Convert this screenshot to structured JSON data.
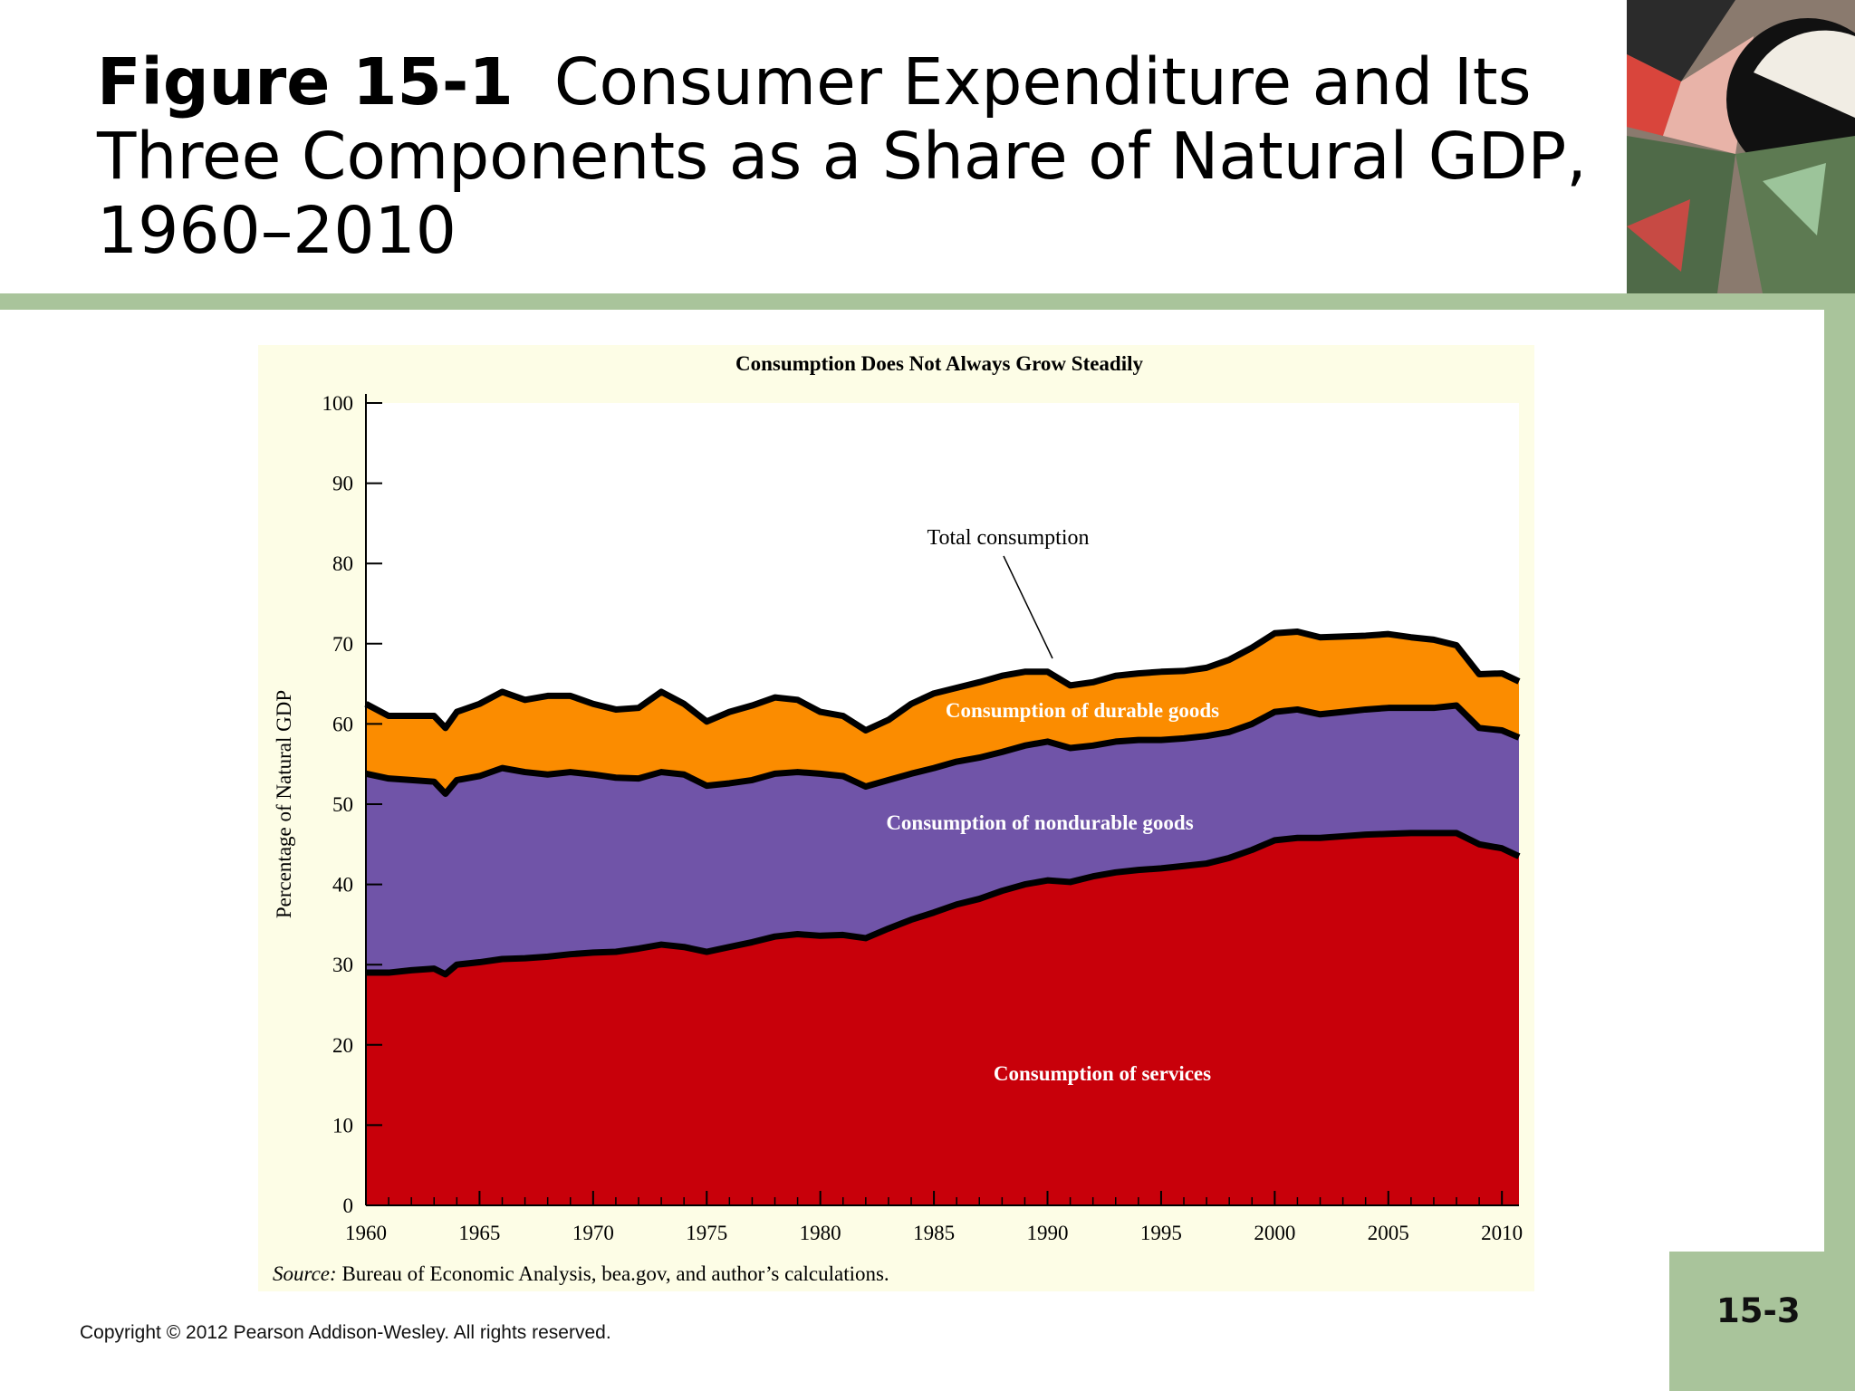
{
  "slide": {
    "figure_label": "Figure 15-1",
    "title_rest": "Consumer Expenditure and Its Three Components as a Share of Natural GDP, 1960–2010",
    "page_number": "15-3",
    "copyright": "Copyright © 2012 Pearson Addison-Wesley. All rights reserved.",
    "accent_color": "#a9c49b"
  },
  "chart_data": {
    "type": "area",
    "stacked": true,
    "title": "Consumption Does Not Always Grow Steadily",
    "xlabel": "",
    "ylabel": "Percentage of Natural GDP",
    "xlim": [
      1960,
      2010.75
    ],
    "ylim": [
      0,
      100
    ],
    "xticks": [
      1960,
      1965,
      1970,
      1975,
      1980,
      1985,
      1990,
      1995,
      2000,
      2005,
      2010
    ],
    "yticks": [
      0,
      10,
      20,
      30,
      40,
      50,
      60,
      70,
      80,
      90,
      100
    ],
    "grid": false,
    "source_prefix": "Source:",
    "source_text": "Bureau of Economic Analysis, bea.gov, and author’s calculations.",
    "annotation": "Total consumption",
    "x": [
      1960,
      1961,
      1962,
      1963,
      1963.5,
      1964,
      1965,
      1966,
      1967,
      1968,
      1969,
      1970,
      1971,
      1972,
      1973,
      1974,
      1975,
      1976,
      1977,
      1978,
      1979,
      1980,
      1981,
      1982,
      1983,
      1984,
      1985,
      1986,
      1987,
      1988,
      1989,
      1990,
      1991,
      1992,
      1993,
      1994,
      1995,
      1996,
      1997,
      1998,
      1999,
      2000,
      2001,
      2002,
      2003,
      2004,
      2005,
      2006,
      2007,
      2008,
      2009,
      2010,
      2010.75
    ],
    "series": [
      {
        "name": "Consumption of services",
        "color": "#c8000a",
        "values": [
          29,
          29,
          29.3,
          29.5,
          28.8,
          30,
          30.3,
          30.7,
          30.8,
          31,
          31.3,
          31.5,
          31.6,
          32,
          32.5,
          32.2,
          31.6,
          32.2,
          32.8,
          33.5,
          33.8,
          33.6,
          33.7,
          33.3,
          34.5,
          35.6,
          36.5,
          37.5,
          38.2,
          39.2,
          40,
          40.5,
          40.3,
          41,
          41.5,
          41.8,
          42,
          42.3,
          42.6,
          43.3,
          44.3,
          45.5,
          45.8,
          45.8,
          46,
          46.2,
          46.3,
          46.4,
          46.4,
          46.4,
          45,
          44.5,
          43.5
        ]
      },
      {
        "name": "Consumption of nondurable goods",
        "color": "#7054a8",
        "values": [
          24.8,
          24.2,
          23.7,
          23.3,
          22.5,
          23.0,
          23.2,
          23.8,
          23.2,
          22.7,
          22.7,
          22.2,
          21.7,
          21.2,
          21.5,
          21.5,
          20.7,
          20.4,
          20.2,
          20.3,
          20.2,
          20.2,
          19.8,
          18.9,
          18.5,
          18.2,
          18.0,
          17.8,
          17.6,
          17.3,
          17.3,
          17.3,
          16.7,
          16.3,
          16.3,
          16.2,
          16.0,
          15.9,
          15.9,
          15.7,
          15.7,
          16.0,
          16.0,
          15.4,
          15.5,
          15.6,
          15.7,
          15.6,
          15.6,
          15.9,
          14.5,
          14.7,
          14.8
        ]
      },
      {
        "name": "Consumption of durable goods",
        "color": "#fb8c00",
        "values": [
          8.7,
          7.8,
          8.0,
          8.2,
          8.2,
          8.5,
          9.0,
          9.5,
          9.0,
          9.8,
          9.5,
          8.8,
          8.5,
          8.8,
          10.0,
          8.8,
          8.0,
          8.9,
          9.3,
          9.5,
          9.0,
          7.7,
          7.5,
          7.0,
          7.5,
          8.7,
          9.3,
          9.2,
          9.4,
          9.5,
          9.2,
          8.7,
          7.8,
          7.9,
          8.2,
          8.3,
          8.5,
          8.4,
          8.5,
          9.0,
          9.5,
          9.8,
          9.7,
          9.6,
          9.4,
          9.2,
          9.2,
          8.8,
          8.5,
          7.5,
          6.7,
          7.1,
          7.0
        ]
      }
    ]
  }
}
